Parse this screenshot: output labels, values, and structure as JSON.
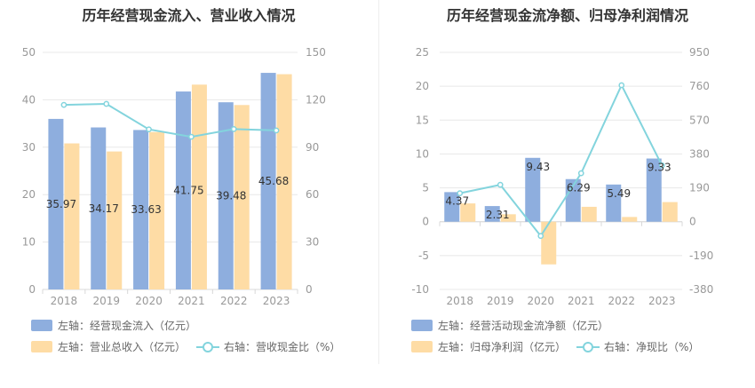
{
  "charts": {
    "left": {
      "title": "历年经营现金流入、营业收入情况",
      "legend": [
        {
          "label": "左轴：经营现金流入（亿元）",
          "color": "#8eaede",
          "kind": "bar"
        },
        {
          "label": "左轴：营业总收入（亿元）",
          "color": "#fedca5",
          "kind": "bar"
        },
        {
          "label": "右轴：营收现金比（%）",
          "color": "#83d4dd",
          "kind": "line"
        }
      ]
    },
    "right": {
      "title": "历年经营现金流净额、归母净利润情况",
      "legend": [
        {
          "label": "左轴：经营活动现金流净额（亿元）",
          "color": "#8eaede",
          "kind": "bar"
        },
        {
          "label": "左轴：归母净利润（亿元）",
          "color": "#fedca5",
          "kind": "bar"
        },
        {
          "label": "右轴：净现比（%）",
          "color": "#83d4dd",
          "kind": "line"
        }
      ]
    }
  },
  "chart_data": [
    {
      "type": "bar",
      "title": "历年经营现金流入、营业收入情况",
      "categories": [
        "2018",
        "2019",
        "2020",
        "2021",
        "2022",
        "2023"
      ],
      "y_left": {
        "min": 0,
        "max": 50,
        "ticks": [
          "0",
          "10",
          "20",
          "30",
          "40",
          "50"
        ]
      },
      "y_right": {
        "min": 0,
        "max": 150,
        "ticks": [
          "0",
          "30",
          "60",
          "90",
          "120",
          "150"
        ]
      },
      "series": [
        {
          "name": "左轴：经营现金流入（亿元）",
          "axis": "left",
          "type": "bar",
          "color": "#8eaede",
          "values": [
            35.97,
            34.17,
            33.63,
            41.75,
            39.48,
            45.68
          ],
          "labels": [
            "35.97",
            "34.17",
            "33.63",
            "41.75",
            "39.48",
            "45.68"
          ]
        },
        {
          "name": "左轴：营业总收入（亿元）",
          "axis": "left",
          "type": "bar",
          "color": "#fedca5",
          "values": [
            30.8,
            29.1,
            33.2,
            43.2,
            38.9,
            45.4
          ]
        },
        {
          "name": "右轴：营收现金比（%）",
          "axis": "right",
          "type": "line",
          "color": "#83d4dd",
          "values": [
            116.8,
            117.4,
            101.3,
            96.6,
            101.5,
            100.6
          ]
        }
      ]
    },
    {
      "type": "bar",
      "title": "历年经营现金流净额、归母净利润情况",
      "categories": [
        "2018",
        "2019",
        "2020",
        "2021",
        "2022",
        "2023"
      ],
      "y_left": {
        "min": -10,
        "max": 25,
        "ticks": [
          "-10",
          "-5",
          "0",
          "5",
          "10",
          "15",
          "20",
          "25"
        ]
      },
      "y_right": {
        "min": -380,
        "max": 950,
        "ticks": [
          "-380",
          "-190",
          "0",
          "190",
          "380",
          "570",
          "760",
          "950"
        ]
      },
      "series": [
        {
          "name": "左轴：经营活动现金流净额（亿元）",
          "axis": "left",
          "type": "bar",
          "color": "#8eaede",
          "values": [
            4.37,
            2.31,
            9.43,
            6.29,
            5.49,
            9.33
          ],
          "labels": [
            "4.37",
            "2.31",
            "9.43",
            "6.29",
            "5.49",
            "9.33"
          ]
        },
        {
          "name": "左轴：归母净利润（亿元）",
          "axis": "left",
          "type": "bar",
          "color": "#fedca5",
          "values": [
            2.7,
            1.1,
            -6.3,
            2.2,
            0.7,
            2.9
          ]
        },
        {
          "name": "右轴：净现比（%）",
          "axis": "right",
          "type": "line",
          "color": "#83d4dd",
          "values": [
            160,
            207,
            -80,
            272,
            766,
            316
          ]
        }
      ]
    }
  ]
}
